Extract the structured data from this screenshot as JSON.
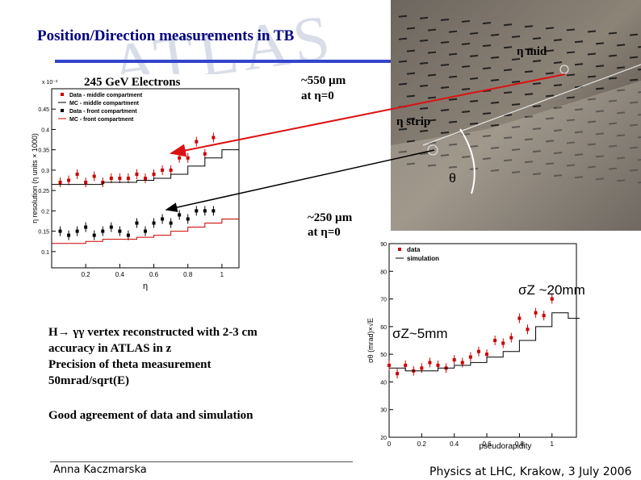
{
  "slide": {
    "title": "Position/Direction measurements in TB",
    "watermark": "ATLAS",
    "energy_label": "245 GeV Electrons",
    "label_550": "~550 µm",
    "label_550_sub": "at η=0",
    "label_250": "~250 µm",
    "label_250_sub": "at η=0",
    "eta_mid": "η mid",
    "eta_strip": "η strip",
    "theta": "θ",
    "sigma_20": "σZ ~20mm",
    "sigma_5": "σZ~5mm",
    "body_lines": [
      "H→ γγ  vertex reconstructed with 2-3 cm",
      "accuracy in ATLAS in z",
      "Precision of theta measurement",
      "50mrad/sqrt(E)"
    ],
    "agreement": "Good agreement of data and simulation",
    "author": "Anna Kaczmarska",
    "conference": "Physics at LHC, Krakow,  3 July 2006"
  },
  "colors": {
    "title": "#000080",
    "data_red": "#cc0000",
    "mc_black": "#000000",
    "red_arrow": "#dd1111",
    "bar_blue": "#3344cc"
  },
  "chart_data": [
    {
      "type": "scatter",
      "ylabel": "η resolution (η units × 1000)",
      "xlabel": "η",
      "y_exponent": "x 10⁻³",
      "xlim": [
        0,
        1.1
      ],
      "ylim": [
        0.06,
        0.5
      ],
      "x_ticks": [
        "0.2",
        "0.4",
        "0.6",
        "0.8",
        "1"
      ],
      "y_ticks": [
        "0.1",
        "0.15",
        "0.2",
        "0.25",
        "0.3",
        "0.35",
        "0.4",
        "0.45"
      ],
      "legend": [
        "Data - middle compartment",
        "MC - middle compartment",
        "Data - front compartment",
        "MC - front compartment"
      ],
      "series": [
        {
          "name": "Data - middle compartment",
          "color": "#cc0000",
          "x": [
            0.05,
            0.1,
            0.15,
            0.2,
            0.25,
            0.3,
            0.35,
            0.4,
            0.45,
            0.5,
            0.55,
            0.6,
            0.65,
            0.7,
            0.75,
            0.8,
            0.85,
            0.9,
            0.95
          ],
          "y": [
            0.27,
            0.275,
            0.29,
            0.27,
            0.285,
            0.27,
            0.28,
            0.28,
            0.28,
            0.29,
            0.28,
            0.29,
            0.3,
            0.3,
            0.33,
            0.33,
            0.37,
            0.34,
            0.38
          ]
        },
        {
          "name": "Data - front compartment",
          "color": "#000000",
          "x": [
            0.05,
            0.1,
            0.15,
            0.2,
            0.25,
            0.3,
            0.35,
            0.4,
            0.45,
            0.5,
            0.55,
            0.6,
            0.65,
            0.7,
            0.75,
            0.8,
            0.85,
            0.9,
            0.95
          ],
          "y": [
            0.15,
            0.14,
            0.15,
            0.16,
            0.14,
            0.15,
            0.16,
            0.15,
            0.14,
            0.17,
            0.15,
            0.17,
            0.18,
            0.17,
            0.19,
            0.18,
            0.2,
            0.2,
            0.2
          ]
        },
        {
          "name": "MC - middle compartment",
          "color": "#000000",
          "x": [
            0.0,
            0.1,
            0.2,
            0.3,
            0.4,
            0.5,
            0.6,
            0.7,
            0.8,
            0.9,
            1.0
          ],
          "y": [
            0.265,
            0.265,
            0.265,
            0.27,
            0.27,
            0.275,
            0.28,
            0.29,
            0.31,
            0.33,
            0.35
          ]
        },
        {
          "name": "MC - front compartment",
          "color": "#cc0000",
          "x": [
            0.0,
            0.1,
            0.2,
            0.3,
            0.4,
            0.5,
            0.6,
            0.7,
            0.8,
            0.9,
            1.0
          ],
          "y": [
            0.12,
            0.12,
            0.125,
            0.13,
            0.13,
            0.135,
            0.14,
            0.15,
            0.16,
            0.17,
            0.18
          ]
        }
      ]
    },
    {
      "type": "scatter",
      "ylabel": "σθ (mrad)×√E",
      "xlabel": "pseudorapidity",
      "xlim": [
        0,
        1.15
      ],
      "ylim": [
        20,
        90
      ],
      "x_ticks": [
        "0",
        "0.2",
        "0.4",
        "0.6",
        "0.8",
        "1"
      ],
      "y_ticks": [
        "20",
        "30",
        "40",
        "50",
        "60",
        "70",
        "80",
        "90"
      ],
      "legend": [
        "data",
        "simulation"
      ],
      "series": [
        {
          "name": "data",
          "color": "#cc0000",
          "x": [
            0.0,
            0.05,
            0.1,
            0.15,
            0.2,
            0.25,
            0.3,
            0.35,
            0.4,
            0.45,
            0.5,
            0.55,
            0.6,
            0.65,
            0.7,
            0.75,
            0.8,
            0.85,
            0.9,
            0.95,
            1.0
          ],
          "y": [
            46,
            43,
            46,
            44,
            45,
            47,
            46,
            45,
            48,
            47,
            49,
            51,
            50,
            55,
            54,
            56,
            63,
            59,
            65,
            64,
            70
          ]
        },
        {
          "name": "simulation",
          "color": "#000000",
          "x": [
            0.0,
            0.1,
            0.2,
            0.3,
            0.4,
            0.5,
            0.6,
            0.7,
            0.8,
            0.9,
            1.0,
            1.1
          ],
          "y": [
            45,
            44,
            44,
            45,
            46,
            47,
            49,
            51,
            55,
            60,
            65,
            63
          ]
        }
      ]
    }
  ]
}
